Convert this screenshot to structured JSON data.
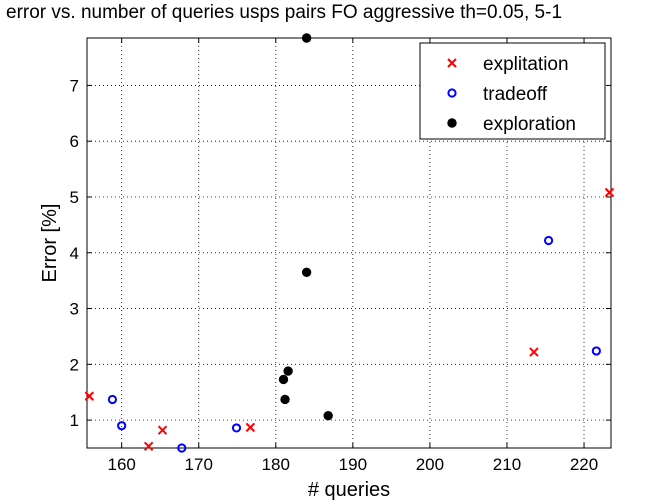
{
  "chart_data": {
    "type": "scatter",
    "title": "error vs. number of queries usps pairs FO aggressive th=0.05, 5-1",
    "xlabel": "# queries",
    "ylabel": "Error [%]",
    "xlim": [
      155.5,
      223.5
    ],
    "ylim": [
      0.5,
      7.85
    ],
    "xticks": [
      160,
      170,
      180,
      190,
      200,
      210,
      220
    ],
    "yticks": [
      1,
      2,
      3,
      4,
      5,
      6,
      7
    ],
    "grid": true,
    "legend_position": "top-right",
    "series": [
      {
        "name": "explitation",
        "marker": "x",
        "color": "#ff0000",
        "points": [
          [
            155.8,
            1.43
          ],
          [
            163.5,
            0.53
          ],
          [
            165.3,
            0.82
          ],
          [
            176.7,
            0.87
          ],
          [
            213.5,
            2.22
          ],
          [
            223.3,
            5.08
          ]
        ]
      },
      {
        "name": "tradeoff",
        "marker": "o",
        "color": "#0000ff",
        "points": [
          [
            158.8,
            1.37
          ],
          [
            160.0,
            0.9
          ],
          [
            167.8,
            0.5
          ],
          [
            174.9,
            0.86
          ],
          [
            215.4,
            4.22
          ],
          [
            221.6,
            2.24
          ]
        ]
      },
      {
        "name": "exploration",
        "marker": "filled-circle",
        "color": "#000000",
        "points": [
          [
            184.0,
            7.85
          ],
          [
            184.0,
            3.65
          ],
          [
            181.6,
            1.88
          ],
          [
            181.0,
            1.73
          ],
          [
            181.2,
            1.37
          ],
          [
            186.8,
            1.08
          ]
        ]
      }
    ]
  }
}
